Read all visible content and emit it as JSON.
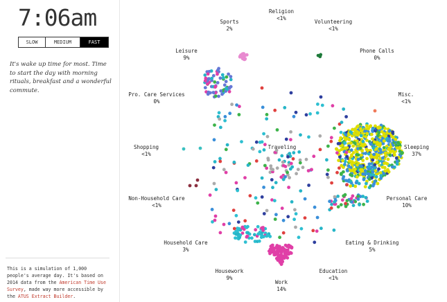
{
  "clock": {
    "time": "7:06am"
  },
  "speed": {
    "options": [
      "SLOW",
      "MEDIUM",
      "FAST"
    ],
    "selected": "FAST"
  },
  "description": "It's wake up time for most. Time to start the day with morning rituals, breakfast and a wonderful commute.",
  "footnote": {
    "text1": "This is a simulation of 1,000 people's average day. It's based on 2014 data from the ",
    "link1": "American Time Use Survey",
    "text2": ", made way more accessible by the ",
    "link2": "ATUS Extract Builder",
    "text3": "."
  },
  "activities": [
    {
      "id": "religion",
      "name": "Religion",
      "pct": "<1%"
    },
    {
      "id": "sports",
      "name": "Sports",
      "pct": "2%"
    },
    {
      "id": "volunteering",
      "name": "Volunteering",
      "pct": "<1%"
    },
    {
      "id": "leisure",
      "name": "Leisure",
      "pct": "9%"
    },
    {
      "id": "phone",
      "name": "Phone Calls",
      "pct": "0%"
    },
    {
      "id": "procare",
      "name": "Pro. Care Services",
      "pct": "0%"
    },
    {
      "id": "misc",
      "name": "Misc.",
      "pct": "<1%"
    },
    {
      "id": "shopping",
      "name": "Shopping",
      "pct": "<1%"
    },
    {
      "id": "traveling",
      "name": "Traveling",
      "pct": ""
    },
    {
      "id": "sleeping",
      "name": "Sleeping",
      "pct": "37%"
    },
    {
      "id": "nonhh",
      "name": "Non-Household Care",
      "pct": "<1%"
    },
    {
      "id": "personal",
      "name": "Personal Care",
      "pct": "10%"
    },
    {
      "id": "household",
      "name": "Household Care",
      "pct": "3%"
    },
    {
      "id": "eating",
      "name": "Eating & Drinking",
      "pct": "5%"
    },
    {
      "id": "housework",
      "name": "Housework",
      "pct": "9%"
    },
    {
      "id": "education",
      "name": "Education",
      "pct": "<1%"
    },
    {
      "id": "work",
      "name": "Work",
      "pct": "14%"
    }
  ],
  "colors": {
    "sleeping": "#dede00",
    "personal": "#3a8fd9",
    "teal": "#26b5c7",
    "work": "#e03fa7",
    "leisure": "#6678d6",
    "green": "#3db34a",
    "sports": "#e88ad0",
    "travel": "#aaaaaa",
    "household": "#2ebfd1",
    "shopping": "#3ac0c0",
    "nonhh": "#8b2f3f",
    "misc": "#f07a5a",
    "volunteering": "#1e7a3a",
    "red": "#e0413f",
    "navy": "#2e3f9e"
  }
}
